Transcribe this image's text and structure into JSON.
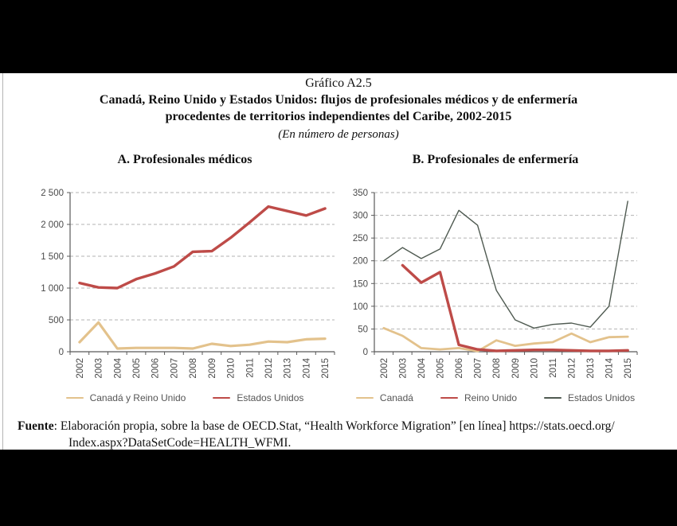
{
  "header": {
    "figure_number": "Gráfico A2.5",
    "title_line1": "Canadá, Reino Unido y Estados Unidos: flujos de profesionales médicos y de enfermería",
    "title_line2": "procedentes de territorios independientes del Caribe, 2002-2015",
    "unit_note": "(En número de personas)"
  },
  "footer": {
    "label": "Fuente",
    "separator": ":  ",
    "text_line1": "Elaboración propia, sobre la base de OECD.Stat, “Health Workforce Migration” [en línea] https://stats.oecd.org/",
    "text_line2": "Index.aspx?DataSetCode=HEALTH_WFMI."
  },
  "colors": {
    "tan": "#E3C28C",
    "red": "#BE4B48",
    "gray": "#4F5A51",
    "grid": "#B3B3B3",
    "axis": "#595959",
    "tick_label": "#4A4A4A"
  },
  "chart_data": [
    {
      "type": "line",
      "title": "A. Profesionales médicos",
      "categories": [
        "2002",
        "2003",
        "2004",
        "2005",
        "2006",
        "2007",
        "2008",
        "2009",
        "2010",
        "2011",
        "2012",
        "2013",
        "2014",
        "2015"
      ],
      "ylim": [
        0,
        2500
      ],
      "y_ticks": [
        0,
        500,
        1000,
        1500,
        2000,
        2500
      ],
      "y_tick_labels": [
        "0",
        "500",
        "1 000",
        "1 500",
        "2 000",
        "2 500"
      ],
      "grid": "horizontal-dashed",
      "legend_position": "bottom",
      "series": [
        {
          "name": "Canadá y Reino Unido",
          "color_key": "tan",
          "stroke_width": 3.2,
          "values": [
            150,
            460,
            50,
            60,
            60,
            60,
            50,
            125,
            90,
            110,
            160,
            150,
            195,
            205
          ]
        },
        {
          "name": "Estados Unidos",
          "color_key": "red",
          "stroke_width": 3.4,
          "values": [
            1080,
            1010,
            1000,
            1140,
            1230,
            1340,
            1570,
            1580,
            1790,
            2030,
            2280,
            2210,
            2140,
            2250
          ]
        }
      ]
    },
    {
      "type": "line",
      "title": "B. Profesionales de enfermería",
      "categories": [
        "2002",
        "2003",
        "2004",
        "2005",
        "2006",
        "2007",
        "2008",
        "2009",
        "2010",
        "2011",
        "2012",
        "2013",
        "2014",
        "2015"
      ],
      "ylim": [
        0,
        350
      ],
      "y_ticks": [
        0,
        50,
        100,
        150,
        200,
        250,
        300,
        350
      ],
      "y_tick_labels": [
        "0",
        "50",
        "100",
        "150",
        "200",
        "250",
        "300",
        "350"
      ],
      "grid": "horizontal-dashed",
      "legend_position": "bottom",
      "series": [
        {
          "name": "Canadá",
          "color_key": "tan",
          "stroke_width": 2.8,
          "values": [
            52,
            35,
            8,
            5,
            8,
            1,
            25,
            13,
            18,
            21,
            40,
            21,
            32,
            33
          ]
        },
        {
          "name": "Reino Unido",
          "color_key": "red",
          "stroke_width": 3.4,
          "values": [
            null,
            190,
            152,
            175,
            15,
            5,
            2,
            3,
            4,
            4,
            3,
            2,
            2,
            3
          ]
        },
        {
          "name": "Estados Unidos",
          "color_key": "gray",
          "stroke_width": 1.4,
          "values": [
            200,
            229,
            205,
            226,
            311,
            278,
            135,
            70,
            52,
            60,
            63,
            54,
            100,
            331
          ]
        }
      ]
    }
  ]
}
